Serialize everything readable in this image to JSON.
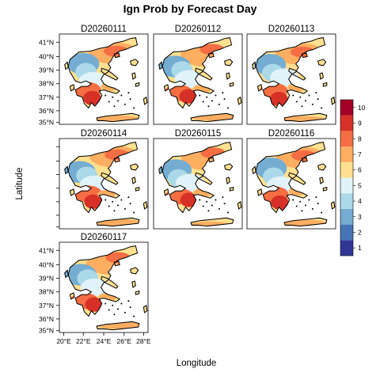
{
  "figure": {
    "title": "Ign Prob by Forecast Day",
    "xlabel": "Longitude",
    "ylabel": "Latitude"
  },
  "panels": [
    {
      "title": "D20260111"
    },
    {
      "title": "D20260112"
    },
    {
      "title": "D20260113"
    },
    {
      "title": "D20260114"
    },
    {
      "title": "D20260115"
    },
    {
      "title": "D20260116"
    },
    {
      "title": "D20260117"
    }
  ],
  "axes": {
    "lat_ticks": [
      "41°N",
      "40°N",
      "39°N",
      "38°N",
      "37°N",
      "36°N",
      "35°N"
    ],
    "lon_ticks": [
      "20°E",
      "22°E",
      "24°E",
      "26°E",
      "28°E"
    ]
  },
  "colorbar": {
    "labels": [
      "1",
      "2",
      "3",
      "4",
      "5",
      "6",
      "7",
      "8",
      "9",
      "10"
    ],
    "colors": [
      "#313695",
      "#4575b4",
      "#74add1",
      "#abd9e9",
      "#e0f3f8",
      "#fee090",
      "#fdae61",
      "#f46d43",
      "#d73027",
      "#a50026"
    ]
  }
}
